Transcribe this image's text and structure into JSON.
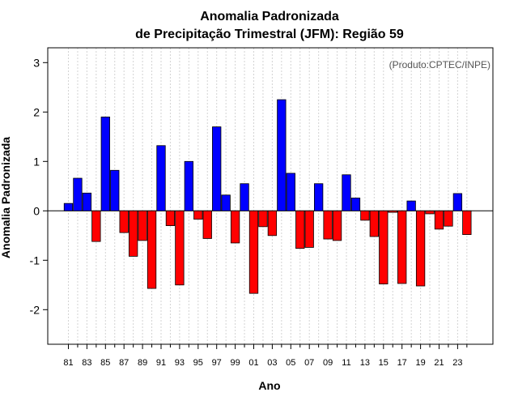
{
  "chart_data": {
    "type": "bar",
    "title": "Anomalia Padronizada",
    "subtitle": "de Precipitação Trimestral (JFM): Região 59",
    "xlabel": "Ano",
    "ylabel": "Anomalia Padronizada",
    "annotation": "(Produto:CPTEC/INPE)",
    "ylim": [
      -2.7,
      3.3
    ],
    "yticks": [
      "-2",
      "-1",
      "0",
      "1",
      "2",
      "3"
    ],
    "ytick_values": [
      -2,
      -1,
      0,
      1,
      2,
      3
    ],
    "tick_labels": [
      "81",
      "83",
      "85",
      "87",
      "89",
      "91",
      "93",
      "95",
      "97",
      "99",
      "01",
      "03",
      "05",
      "07",
      "09",
      "11",
      "13",
      "15",
      "17",
      "19",
      "21",
      "23"
    ],
    "years": [
      1981,
      1982,
      1983,
      1984,
      1985,
      1986,
      1987,
      1988,
      1989,
      1990,
      1991,
      1992,
      1993,
      1994,
      1995,
      1996,
      1997,
      1998,
      1999,
      2000,
      2001,
      2002,
      2003,
      2004,
      2005,
      2006,
      2007,
      2008,
      2009,
      2010,
      2011,
      2012,
      2013,
      2014,
      2015,
      2016,
      2017,
      2018,
      2019,
      2020,
      2021,
      2022,
      2023,
      2024
    ],
    "values": [
      0.15,
      0.66,
      0.36,
      -0.62,
      1.9,
      0.82,
      -0.44,
      -0.92,
      -0.6,
      -1.57,
      1.32,
      -0.3,
      -1.5,
      1.0,
      -0.17,
      -0.56,
      1.7,
      0.32,
      -0.65,
      0.55,
      -1.67,
      -0.32,
      -0.5,
      2.25,
      0.76,
      -0.76,
      -0.74,
      0.55,
      -0.57,
      -0.6,
      0.73,
      0.26,
      -0.19,
      -0.52,
      -1.48,
      -0.03,
      -1.47,
      0.2,
      -1.52,
      -0.06,
      -0.37,
      -0.31,
      0.35,
      -0.48
    ],
    "positive_color": "#0000ff",
    "negative_color": "#ff0000",
    "grid": true
  }
}
